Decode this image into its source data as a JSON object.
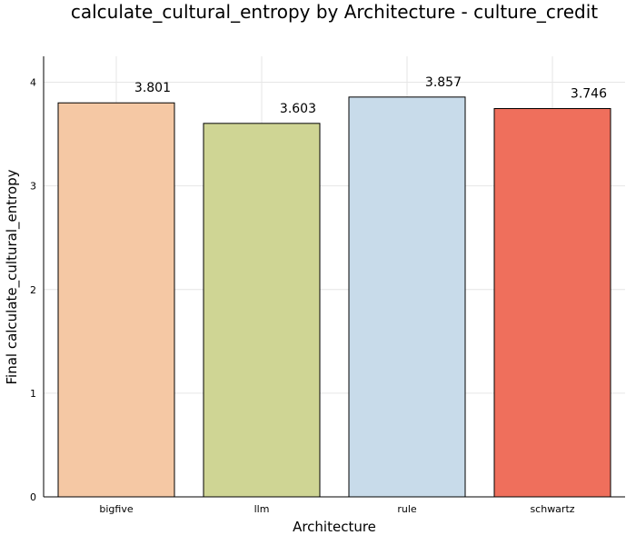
{
  "chart_data": {
    "type": "bar",
    "title": "calculate_cultural_entropy by Architecture - culture_credit",
    "xlabel": "Architecture",
    "ylabel": "Final calculate_cultural_entropy",
    "categories": [
      "bigfive",
      "llm",
      "rule",
      "schwartz"
    ],
    "values": [
      3.801,
      3.603,
      3.857,
      3.746
    ],
    "value_labels": [
      "3.801",
      "3.603",
      "3.857",
      "3.746"
    ],
    "colors": [
      "#f5c8a4",
      "#cfd594",
      "#c8dbea",
      "#ef6f5c"
    ],
    "ylim": [
      0,
      4.25
    ],
    "yticks": [
      0,
      1,
      2,
      3,
      4
    ],
    "grid": true,
    "legend": "none"
  }
}
